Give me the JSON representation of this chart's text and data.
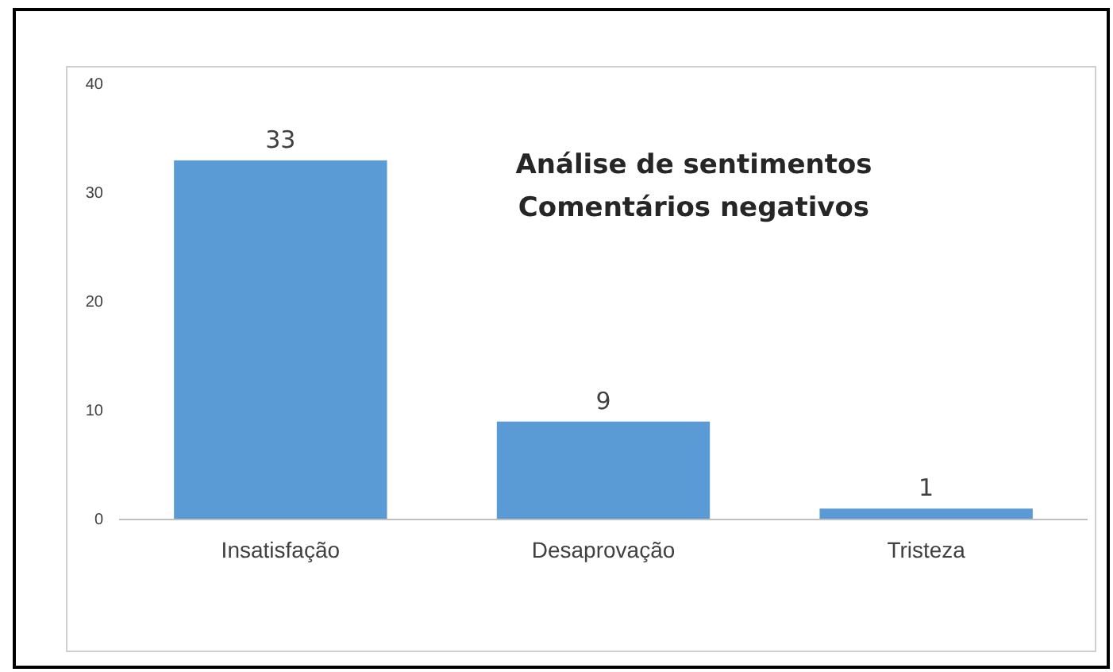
{
  "chart_data": {
    "type": "bar",
    "title": "Análise de sentimentos\nComentários negativos",
    "categories": [
      "Insatisfação",
      "Desaprovação",
      "Tristeza"
    ],
    "values": [
      33,
      9,
      1
    ],
    "color": "#5b9bd5",
    "data_labels": true,
    "ylim": [
      0,
      40
    ],
    "yticks": [
      0,
      10,
      20,
      30,
      40
    ],
    "grid": false
  }
}
